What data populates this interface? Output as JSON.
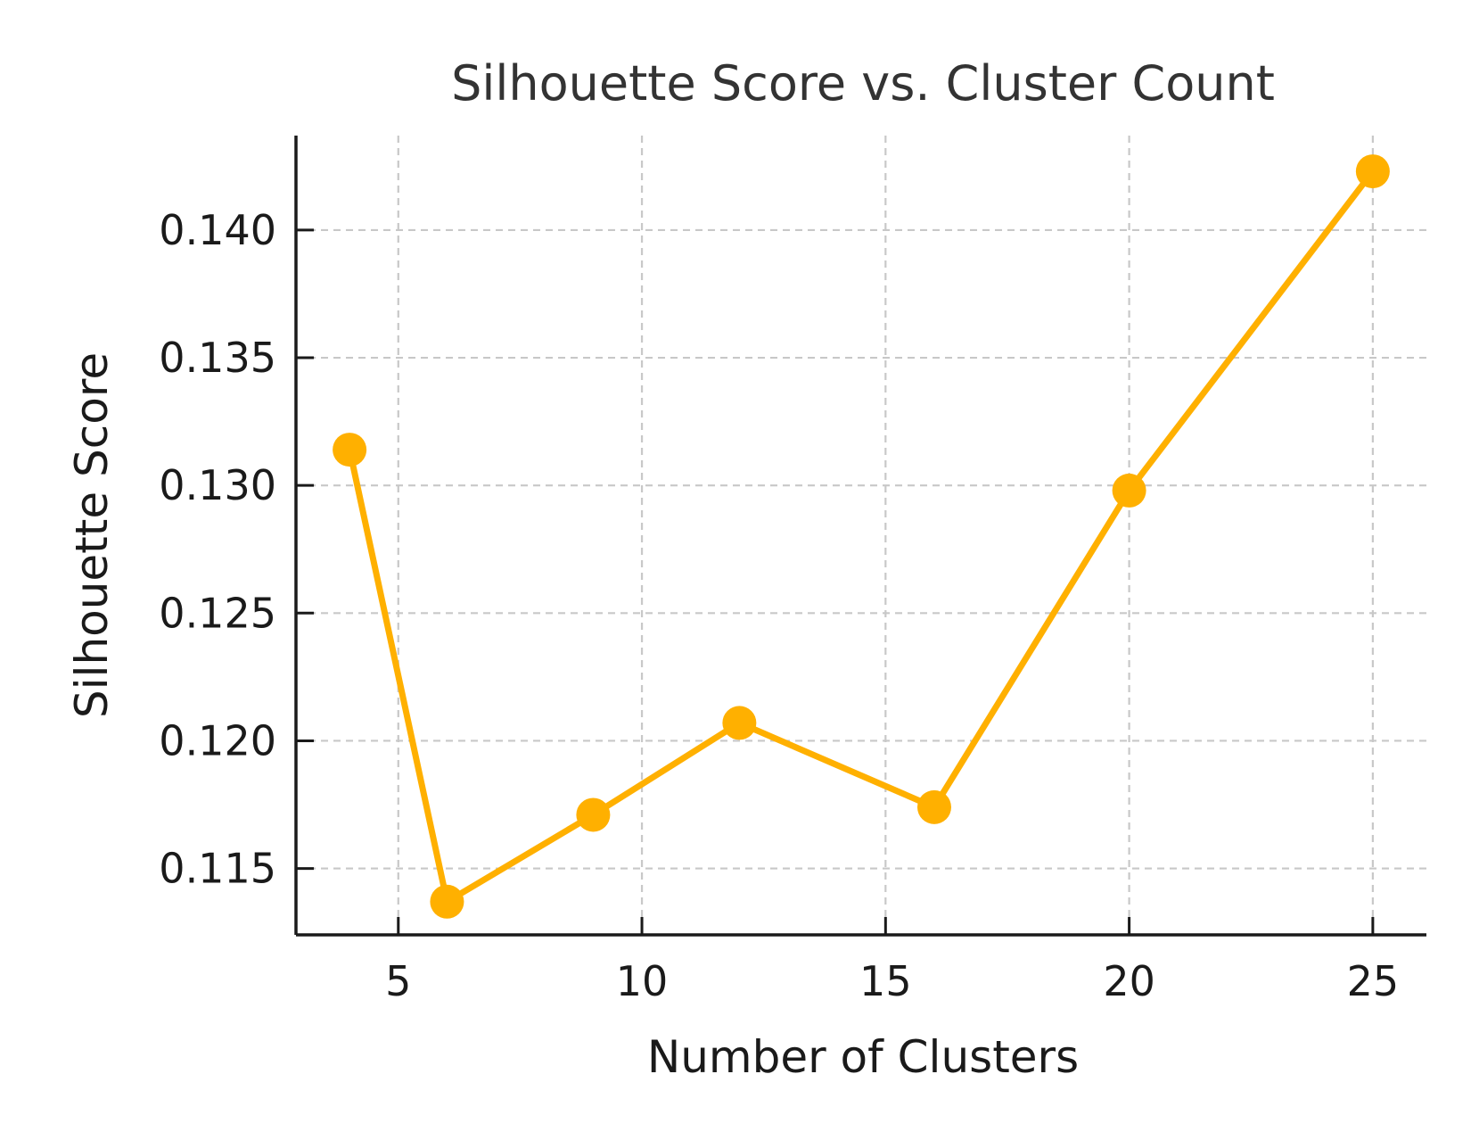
{
  "chart_data": {
    "type": "line",
    "title": "Silhouette Score vs. Cluster Count",
    "xlabel": "Number of Clusters",
    "ylabel": "Silhouette Score",
    "xlim": [
      2.9,
      26.1
    ],
    "ylim": [
      0.1124,
      0.1437
    ],
    "xticks": [
      5,
      10,
      15,
      20,
      25
    ],
    "xtick_labels": [
      "5",
      "10",
      "15",
      "20",
      "25"
    ],
    "yticks": [
      0.115,
      0.12,
      0.125,
      0.13,
      0.135,
      0.14
    ],
    "ytick_labels": [
      "0.115",
      "0.120",
      "0.125",
      "0.130",
      "0.135",
      "0.140"
    ],
    "grid": true,
    "series": [
      {
        "color": "#FFB000",
        "marker": "circle",
        "x": [
          4,
          6,
          9,
          12,
          16,
          20,
          25
        ],
        "y": [
          0.1314,
          0.1137,
          0.1171,
          0.1207,
          0.1174,
          0.1298,
          0.1423
        ]
      }
    ]
  }
}
